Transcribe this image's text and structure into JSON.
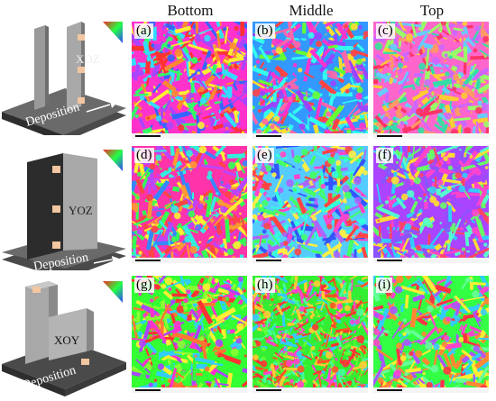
{
  "columns": [
    "Bottom",
    "Middle",
    "Top"
  ],
  "schematics": [
    {
      "plane": "XOZ",
      "direction": "Deposition"
    },
    {
      "plane": "YOZ",
      "direction": "Deposition"
    },
    {
      "plane": "XOY",
      "direction": "Deposition"
    }
  ],
  "panels": [
    {
      "label": "(a)",
      "palette": [
        "#ff33cc",
        "#33ddff",
        "#ff3333",
        "#ffee33",
        "#33ff66",
        "#3366ff",
        "#aa44ff",
        "#ff8833"
      ]
    },
    {
      "label": "(b)",
      "palette": [
        "#3399ff",
        "#ff33cc",
        "#66ff33",
        "#ffdd33",
        "#ff4444",
        "#33ffee",
        "#9944ff",
        "#ff66aa"
      ]
    },
    {
      "label": "(c)",
      "palette": [
        "#ff66cc",
        "#ff3366",
        "#66ccff",
        "#ffcc33",
        "#99ff66",
        "#cc66ff",
        "#33ddaa",
        "#ff9966"
      ]
    },
    {
      "label": "(d)",
      "palette": [
        "#ff33aa",
        "#ffee33",
        "#33ff55",
        "#ff4444",
        "#3388ff",
        "#33eedd",
        "#bb44ff",
        "#ff9933"
      ]
    },
    {
      "label": "(e)",
      "palette": [
        "#55ccff",
        "#ff44cc",
        "#44ff66",
        "#3355ff",
        "#ffee44",
        "#ff4444",
        "#33ffdd",
        "#aa66ff"
      ]
    },
    {
      "label": "(f)",
      "palette": [
        "#aa44ff",
        "#ff44cc",
        "#66ff66",
        "#ffdd33",
        "#33ccff",
        "#ff4466",
        "#8855ff",
        "#55ffcc"
      ]
    },
    {
      "label": "(g)",
      "palette": [
        "#33ff33",
        "#ff3333",
        "#ffee33",
        "#ff33cc",
        "#33ccff",
        "#88ff33",
        "#ff7733",
        "#aa44ff"
      ]
    },
    {
      "label": "(h)",
      "palette": [
        "#33ee33",
        "#ff3333",
        "#ff44cc",
        "#ffcc33",
        "#44ff99",
        "#ff5522",
        "#33ccff",
        "#66ff33"
      ]
    },
    {
      "label": "(i)",
      "palette": [
        "#33ff44",
        "#ff3344",
        "#ff44cc",
        "#ffee33",
        "#33ccff",
        "#ff8833",
        "#aa55ff",
        "#66ff99"
      ]
    }
  ]
}
